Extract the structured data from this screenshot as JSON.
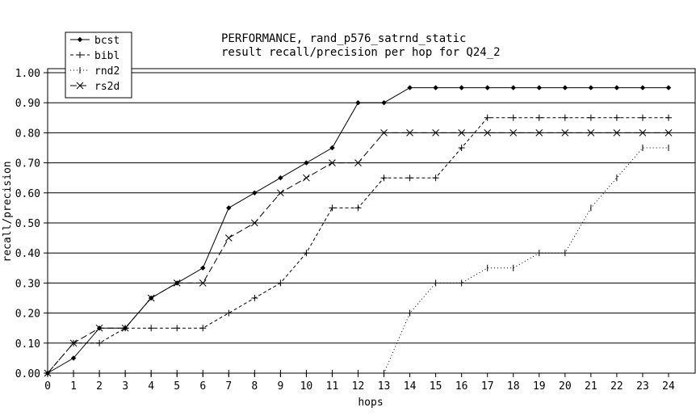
{
  "chart_data": {
    "type": "line",
    "title": "PERFORMANCE, rand_p576_satrnd_static",
    "subtitle": "result recall/precision per hop for Q24_2",
    "xlabel": "hops",
    "ylabel": "recall/precision",
    "xlim": [
      0,
      24
    ],
    "ylim": [
      0,
      1.0
    ],
    "x": [
      0,
      1,
      2,
      3,
      4,
      5,
      6,
      7,
      8,
      9,
      10,
      11,
      12,
      13,
      14,
      15,
      16,
      17,
      18,
      19,
      20,
      21,
      22,
      23,
      24
    ],
    "x_ticks": [
      "0",
      "1",
      "2",
      "3",
      "4",
      "5",
      "6",
      "7",
      "8",
      "9",
      "10",
      "11",
      "12",
      "13",
      "14",
      "15",
      "16",
      "17",
      "18",
      "19",
      "20",
      "21",
      "22",
      "23",
      "24"
    ],
    "y_ticks": [
      0,
      0.1,
      0.2,
      0.3,
      0.4,
      0.5,
      0.6,
      0.7,
      0.8,
      0.9,
      1.0
    ],
    "y_tick_labels": [
      "0.00",
      "0.10",
      "0.20",
      "0.30",
      "0.40",
      "0.50",
      "0.60",
      "0.70",
      "0.80",
      "0.90",
      "1.00"
    ],
    "grid": "horizontal",
    "legend_position": "top-left",
    "series": [
      {
        "name": "bcst",
        "style": "solid",
        "marker": "diamond",
        "values": [
          0,
          0.05,
          0.15,
          0.15,
          0.25,
          0.3,
          0.35,
          0.55,
          0.6,
          0.65,
          0.7,
          0.75,
          0.9,
          0.9,
          0.95,
          0.95,
          0.95,
          0.95,
          0.95,
          0.95,
          0.95,
          0.95,
          0.95,
          0.95,
          0.95
        ]
      },
      {
        "name": "bibl",
        "style": "dashed",
        "marker": "plus",
        "values": [
          0,
          0.1,
          0.1,
          0.15,
          0.15,
          0.15,
          0.15,
          0.2,
          0.25,
          0.3,
          0.4,
          0.55,
          0.55,
          0.65,
          0.65,
          0.65,
          0.75,
          0.85,
          0.85,
          0.85,
          0.85,
          0.85,
          0.85,
          0.85,
          0.85
        ]
      },
      {
        "name": "rnd2",
        "style": "dotted",
        "marker": "tick",
        "values": [
          0,
          0,
          0,
          0,
          0,
          0,
          0,
          0,
          0,
          0,
          0,
          0,
          0,
          0,
          0.2,
          0.3,
          0.3,
          0.35,
          0.35,
          0.4,
          0.4,
          0.55,
          0.65,
          0.75,
          0.75
        ]
      },
      {
        "name": "rs2d",
        "style": "longdash",
        "marker": "x",
        "values": [
          0,
          0.1,
          0.15,
          0.15,
          0.25,
          0.3,
          0.3,
          0.45,
          0.5,
          0.6,
          0.65,
          0.7,
          0.7,
          0.8,
          0.8,
          0.8,
          0.8,
          0.8,
          0.8,
          0.8,
          0.8,
          0.8,
          0.8,
          0.8,
          0.8
        ]
      }
    ]
  }
}
